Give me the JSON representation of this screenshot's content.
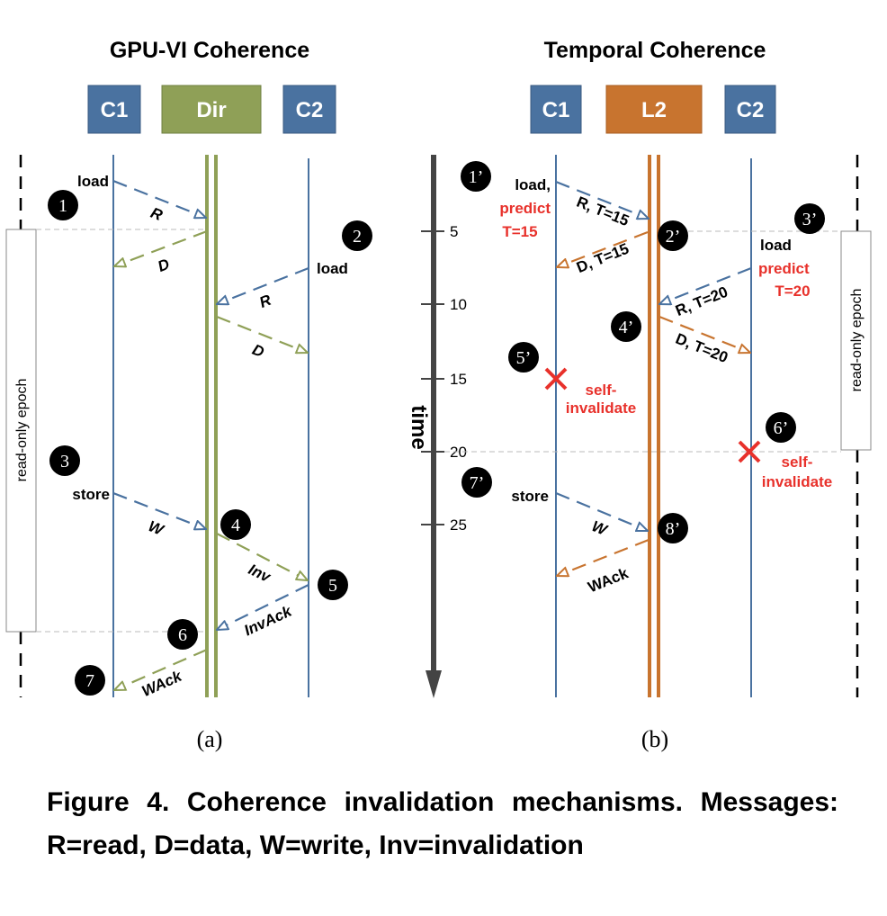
{
  "panel_a": {
    "title": "GPU-VI Coherence",
    "nodes": [
      "C1",
      "Dir",
      "C2"
    ],
    "epoch_label": "read-only epoch",
    "labels": {
      "load1": "load",
      "r1": "R",
      "d1": "D",
      "load2": "load",
      "r2": "R",
      "d2": "D",
      "store": "store",
      "w": "W",
      "inv": "Inv",
      "invack": "InvAck",
      "wack": "WAck"
    },
    "steps": [
      "1",
      "2",
      "3",
      "4",
      "5",
      "6",
      "7"
    ],
    "sublabel": "(a)"
  },
  "panel_b": {
    "title": "Temporal Coherence",
    "nodes": [
      "C1",
      "L2",
      "C2"
    ],
    "epoch_label": "read-only epoch",
    "time_axis": {
      "label": "time",
      "ticks": [
        "5",
        "10",
        "15",
        "20",
        "25"
      ]
    },
    "labels": {
      "load1": "load,",
      "predict1": "predict",
      "t15": "T=15",
      "r1": "R, T=15",
      "d1": "D, T=15",
      "load2": "load",
      "predict2": "predict",
      "t20": "T=20",
      "r2": "R, T=20",
      "d2": "D, T=20",
      "self1": "self-",
      "inval1": "invalidate",
      "self2": "self-",
      "inval2": "invalidate",
      "store": "store",
      "w": "W",
      "wack": "WAck"
    },
    "steps": [
      "1’",
      "2’",
      "3’",
      "4’",
      "5’",
      "6’",
      "7’",
      "8’"
    ],
    "sublabel": "(b)"
  },
  "colors": {
    "cache": "#4a72a0",
    "dir": "#8fa057",
    "l2": "#c8742f",
    "red": "#e8312b",
    "axis": "#444444"
  },
  "caption": "Figure 4. Coherence invalidation mechanisms. Messages: R=read, D=data, W=write, Inv=invalidation"
}
